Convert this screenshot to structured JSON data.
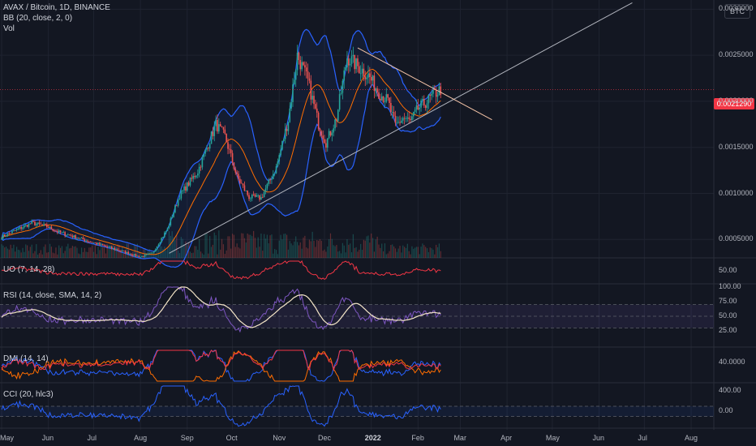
{
  "header": {
    "symbol_line": "AVAX / Bitcoin, 1D, BINANCE",
    "bb_label": "BB (20, close, 2, 0)",
    "vol_label": "Vol",
    "quote_badge": "BTC"
  },
  "current_price": "0.0021290",
  "panes": {
    "uo": "UO (7, 14, 28)",
    "rsi": "RSI (14, close, SMA, 14, 2)",
    "dmi": "DMI (14, 14)",
    "cci": "CCI (20, hlc3)"
  },
  "colors": {
    "background": "#131722",
    "candle_up": "#26a69a",
    "candle_down": "#ef5350",
    "bb_band": "#2962ff",
    "bb_basis": "#ff6d00",
    "uo_line": "#f23645",
    "rsi_line": "#7e57c2",
    "rsi_ma": "#f5e6c8",
    "dmi_plus": "#2962ff",
    "dmi_minus": "#ff6d00",
    "dmi_adx": "#f23645",
    "cci_line": "#2962ff",
    "last_price": "#f23645"
  },
  "chart_data": {
    "type": "candlestick",
    "title": "AVAX / Bitcoin, 1D, BINANCE",
    "price_axis_ticks": [
      "0.0030000",
      "0.0025000",
      "0.0020000",
      "0.0015000",
      "0.0010000",
      "0.0005000"
    ],
    "price_axis_range": [
      0.0003,
      0.0031
    ],
    "time_axis_labels": [
      "May",
      "Jun",
      "Jul",
      "Aug",
      "Sep",
      "Oct",
      "Nov",
      "Dec",
      "2022",
      "Feb",
      "Mar",
      "Apr",
      "May",
      "Jun",
      "Jul",
      "Aug"
    ],
    "time_axis_index": [
      0,
      31,
      61,
      92,
      123,
      153,
      184,
      214,
      245,
      276,
      304,
      335,
      365,
      396,
      426,
      457
    ],
    "close_keypoints": [
      [
        0,
        0.00053
      ],
      [
        20,
        0.00068
      ],
      [
        30,
        0.00064
      ],
      [
        38,
        0.00058
      ],
      [
        50,
        0.00052
      ],
      [
        70,
        0.00042
      ],
      [
        92,
        0.00031
      ],
      [
        100,
        0.00035
      ],
      [
        110,
        0.00062
      ],
      [
        118,
        0.00098
      ],
      [
        130,
        0.00124
      ],
      [
        142,
        0.00175
      ],
      [
        148,
        0.00162
      ],
      [
        156,
        0.00118
      ],
      [
        164,
        0.00096
      ],
      [
        172,
        0.00095
      ],
      [
        182,
        0.00128
      ],
      [
        190,
        0.0018
      ],
      [
        196,
        0.0025
      ],
      [
        203,
        0.00222
      ],
      [
        210,
        0.00176
      ],
      [
        215,
        0.00155
      ],
      [
        222,
        0.00182
      ],
      [
        229,
        0.00248
      ],
      [
        236,
        0.00238
      ],
      [
        243,
        0.00228
      ],
      [
        250,
        0.0021
      ],
      [
        256,
        0.002
      ],
      [
        261,
        0.00173
      ],
      [
        266,
        0.00182
      ],
      [
        271,
        0.00178
      ],
      [
        276,
        0.00192
      ],
      [
        282,
        0.002
      ],
      [
        287,
        0.00208
      ],
      [
        291,
        0.00213
      ]
    ],
    "bb": {
      "length": 20,
      "mult": 2
    },
    "trendlines": [
      {
        "name": "rising support",
        "from": [
          111,
          0.00035
        ],
        "to": [
          418,
          0.00307
        ]
      },
      {
        "name": "falling resistance",
        "from": [
          236,
          0.00258
        ],
        "to": [
          325,
          0.0018
        ]
      }
    ],
    "indicators": {
      "uo": {
        "ticks": [
          "50.00"
        ]
      },
      "rsi": {
        "ticks": [
          "100.00",
          "75.00",
          "50.00",
          "25.00"
        ],
        "band": [
          30,
          70
        ]
      },
      "dmi": {
        "ticks": [
          "40.0000"
        ]
      },
      "cci": {
        "ticks": [
          "400.00",
          "0.00"
        ],
        "band": [
          -100,
          100
        ]
      }
    }
  }
}
